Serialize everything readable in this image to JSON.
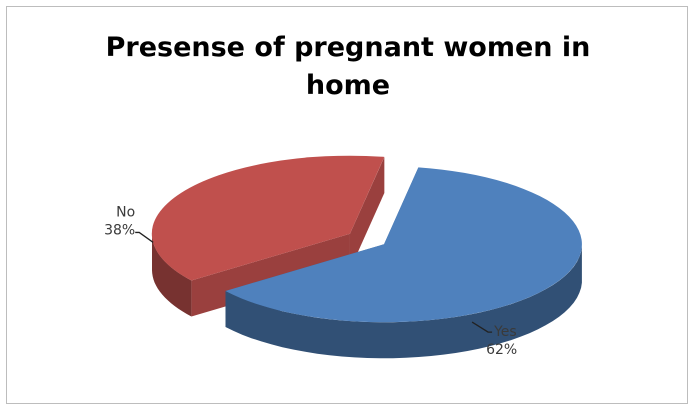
{
  "chart_data": {
    "type": "pie",
    "title": "Presense of pregnant women in home",
    "title_lines": [
      "Presense of pregnant women in",
      "home"
    ],
    "slices": [
      {
        "label": "Yes",
        "value": 62,
        "value_text": "62%",
        "color": "#4f81bd"
      },
      {
        "label": "No",
        "value": 38,
        "value_text": "38%",
        "color": "#c0504d"
      }
    ],
    "style": "3d-exploded",
    "legend": "none",
    "data_labels": "category-and-percent"
  }
}
